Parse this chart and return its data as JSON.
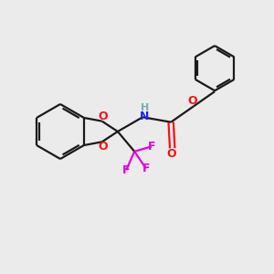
{
  "background_color": "#ebebeb",
  "bond_color": "#1a1a1a",
  "N_color": "#2020ff",
  "O_color": "#ff1010",
  "F_color": "#e000e0",
  "H_color": "#7aacac",
  "line_width": 1.6,
  "figsize": [
    3.0,
    3.0
  ],
  "dpi": 100,
  "xlim": [
    0,
    10
  ],
  "ylim": [
    0,
    10
  ]
}
